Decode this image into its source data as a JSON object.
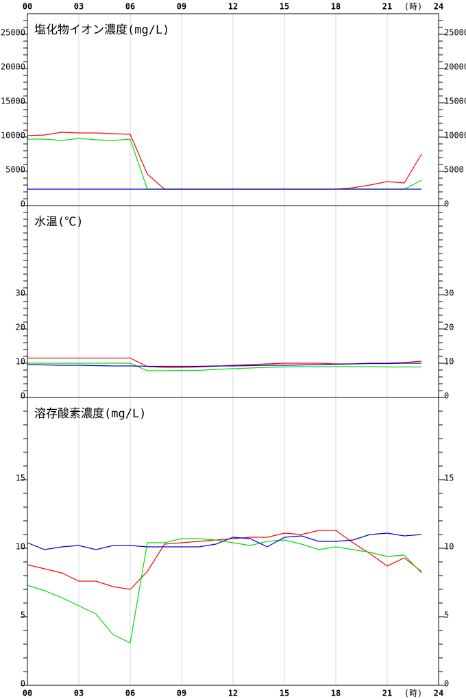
{
  "chart_data": [
    {
      "type": "line",
      "title": "塩化物イオン濃度(mg/L)",
      "x_unit": "(時)",
      "xlim": [
        0,
        24
      ],
      "xticks": [
        {
          "value": 0,
          "label": "00"
        },
        {
          "value": 3,
          "label": "03"
        },
        {
          "value": 6,
          "label": "06"
        },
        {
          "value": 9,
          "label": "09"
        },
        12,
        15,
        18,
        21,
        24
      ],
      "x": [
        0,
        1,
        2,
        3,
        4,
        5,
        6,
        7,
        8,
        9,
        10,
        11,
        12,
        13,
        14,
        15,
        16,
        17,
        18,
        19,
        20,
        21,
        22,
        23
      ],
      "ylim": [
        0,
        28000
      ],
      "yticks": [
        0,
        5000,
        10000,
        15000,
        20000,
        25000
      ],
      "minor_tick_step": 1000,
      "grid": true,
      "series": [
        {
          "color": "#ff0000",
          "values": [
            10200,
            10300,
            10700,
            10600,
            10600,
            10500,
            10400,
            4600,
            2400,
            2400,
            2400,
            2400,
            2400,
            2400,
            2400,
            2400,
            2400,
            2400,
            2400,
            2600,
            3000,
            3500,
            3300,
            7500
          ]
        },
        {
          "color": "#00dd00",
          "values": [
            9700,
            9700,
            9500,
            9800,
            9600,
            9500,
            9700,
            2400,
            2400,
            2400,
            2400,
            2400,
            2400,
            2400,
            2400,
            2400,
            2400,
            2400,
            2400,
            2400,
            2400,
            2400,
            2400,
            3700
          ]
        },
        {
          "color": "#0000cc",
          "values": [
            2400,
            2400,
            2400,
            2400,
            2400,
            2400,
            2400,
            2400,
            2400,
            2400,
            2400,
            2400,
            2400,
            2400,
            2400,
            2400,
            2400,
            2400,
            2400,
            2400,
            2400,
            2400,
            2400,
            2400
          ]
        }
      ]
    },
    {
      "type": "line",
      "title": "水温(℃)",
      "xlim": [
        0,
        24
      ],
      "xticks": [
        {
          "value": 0,
          "label": "00"
        },
        {
          "value": 3,
          "label": "03"
        },
        {
          "value": 6,
          "label": "06"
        },
        {
          "value": 9,
          "label": "09"
        },
        12,
        15,
        18,
        21,
        24
      ],
      "x": [
        0,
        1,
        2,
        3,
        4,
        5,
        6,
        7,
        8,
        9,
        10,
        11,
        12,
        13,
        14,
        15,
        16,
        17,
        18,
        19,
        20,
        21,
        22,
        23
      ],
      "ylim": [
        0,
        56
      ],
      "yticks": [
        0,
        10,
        20,
        30
      ],
      "minor_tick_step": 2,
      "grid": true,
      "series": [
        {
          "color": "#ff0000",
          "values": [
            11.5,
            11.5,
            11.5,
            11.5,
            11.5,
            11.5,
            11.5,
            9,
            8.8,
            8.8,
            8.9,
            9.1,
            9.4,
            9.6,
            9.8,
            10,
            10,
            10,
            9.8,
            9.8,
            10,
            10,
            10.2,
            10.6
          ]
        },
        {
          "color": "#00dd00",
          "values": [
            10,
            10,
            10,
            10,
            10,
            10,
            10,
            7.8,
            7.8,
            7.9,
            7.9,
            8.2,
            8.4,
            8.6,
            8.8,
            8.9,
            9,
            9,
            9,
            9,
            9,
            8.9,
            8.9,
            8.9
          ]
        },
        {
          "color": "#0000cc",
          "values": [
            9.6,
            9.5,
            9.4,
            9.4,
            9.3,
            9.2,
            9.2,
            9.1,
            9.1,
            9.1,
            9.1,
            9.2,
            9.2,
            9.3,
            9.4,
            9.4,
            9.5,
            9.6,
            9.7,
            9.8,
            9.9,
            9.9,
            10,
            10
          ]
        }
      ]
    },
    {
      "type": "line",
      "title": "溶存酸素濃度(mg/L)",
      "x_unit": "(時)",
      "xlim": [
        0,
        24
      ],
      "xticks": [
        {
          "value": 0,
          "label": "00"
        },
        {
          "value": 3,
          "label": "03"
        },
        {
          "value": 6,
          "label": "06"
        },
        {
          "value": 9,
          "label": "09"
        },
        12,
        15,
        18,
        21,
        24
      ],
      "x": [
        0,
        1,
        2,
        3,
        4,
        5,
        6,
        7,
        8,
        9,
        10,
        11,
        12,
        13,
        14,
        15,
        16,
        17,
        18,
        19,
        20,
        21,
        22,
        23
      ],
      "ylim": [
        0,
        21
      ],
      "yticks": [
        0,
        5,
        10,
        15
      ],
      "minor_tick_step": 1,
      "grid": true,
      "series": [
        {
          "color": "#ff0000",
          "values": [
            8.8,
            8.5,
            8.2,
            7.6,
            7.6,
            7.2,
            7.0,
            8.3,
            10.3,
            10.4,
            10.5,
            10.6,
            10.7,
            10.8,
            10.8,
            11.1,
            11.0,
            11.3,
            11.3,
            10.4,
            9.6,
            8.7,
            9.3,
            8.3
          ]
        },
        {
          "color": "#00dd00",
          "values": [
            7.3,
            6.9,
            6.4,
            5.8,
            5.2,
            3.7,
            3.1,
            10.4,
            10.4,
            10.7,
            10.7,
            10.6,
            10.4,
            10.2,
            10.5,
            10.6,
            10.3,
            9.9,
            10.1,
            9.9,
            9.7,
            9.4,
            9.5,
            8.2
          ]
        },
        {
          "color": "#0000cc",
          "values": [
            10.4,
            9.9,
            10.1,
            10.2,
            9.9,
            10.2,
            10.2,
            10.1,
            10.1,
            10.1,
            10.1,
            10.3,
            10.8,
            10.7,
            10.1,
            10.8,
            10.9,
            10.5,
            10.5,
            10.6,
            11.0,
            11.1,
            10.9,
            11.0
          ]
        }
      ]
    }
  ]
}
